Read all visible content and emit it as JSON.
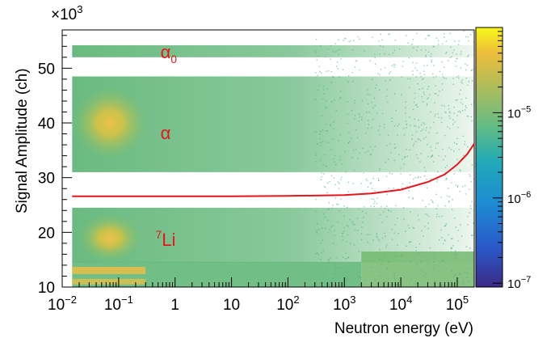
{
  "chart_data": {
    "type": "heatmap",
    "title": "",
    "xlabel": "Neutron energy (eV)",
    "ylabel": "Signal Amplitude (ch)",
    "x_scale": "log",
    "x_range_eV": [
      0.01,
      200000
    ],
    "x_ticks": [
      {
        "value": 0.01,
        "base": "10",
        "exp": "−2"
      },
      {
        "value": 0.1,
        "base": "10",
        "exp": "−1"
      },
      {
        "value": 1,
        "base": "1",
        "exp": ""
      },
      {
        "value": 10,
        "base": "10",
        "exp": ""
      },
      {
        "value": 100,
        "base": "10",
        "exp": "2"
      },
      {
        "value": 1000,
        "base": "10",
        "exp": "3"
      },
      {
        "value": 10000,
        "base": "10",
        "exp": "4"
      },
      {
        "value": 100000,
        "base": "10",
        "exp": "5"
      }
    ],
    "y_multiplier": {
      "base": "×10",
      "exp": "3"
    },
    "y_range": [
      10000,
      57000
    ],
    "y_ticks": [
      {
        "value": 10000,
        "label": "10"
      },
      {
        "value": 20000,
        "label": "20"
      },
      {
        "value": 30000,
        "label": "30"
      },
      {
        "value": 40000,
        "label": "40"
      },
      {
        "value": 50000,
        "label": "50"
      }
    ],
    "colorbar": {
      "scale": "log",
      "range": [
        9e-08,
        0.0001
      ],
      "labels": [
        {
          "value": 1e-07,
          "base": "10",
          "exp": "−7"
        },
        {
          "value": 1e-06,
          "base": "10",
          "exp": "−6"
        },
        {
          "value": 1e-05,
          "base": "10",
          "exp": "−5"
        }
      ]
    },
    "annotations": [
      {
        "text": "α",
        "sub": "0",
        "sup": "",
        "x_eV": 0.55,
        "y": 53000
      },
      {
        "text": "α",
        "sub": "",
        "sup": "",
        "x_eV": 0.55,
        "y": 38200
      },
      {
        "text": "Li",
        "sub": "",
        "sup": "7",
        "x_eV": 0.45,
        "y": 18700
      }
    ],
    "threshold_curve": {
      "color": "#e8141c",
      "x_eV": [
        0.015,
        1,
        10,
        100,
        1000,
        3000,
        10000,
        30000,
        60000,
        100000,
        150000,
        200000
      ],
      "y": [
        26600,
        26600,
        26600,
        26650,
        26800,
        27100,
        27800,
        29200,
        30600,
        32400,
        34300,
        36200
      ]
    },
    "density_bands": [
      {
        "name": "alpha0",
        "y_center": 53000,
        "y_halfwidth": 900
      },
      {
        "name": "alpha",
        "y_center": 39500,
        "y_halfwidth": 7000
      },
      {
        "name": "Li7",
        "y_center": 18500,
        "y_halfwidth": 4500
      },
      {
        "name": "low",
        "y_center": 13000,
        "y_halfwidth": 1500
      }
    ]
  }
}
